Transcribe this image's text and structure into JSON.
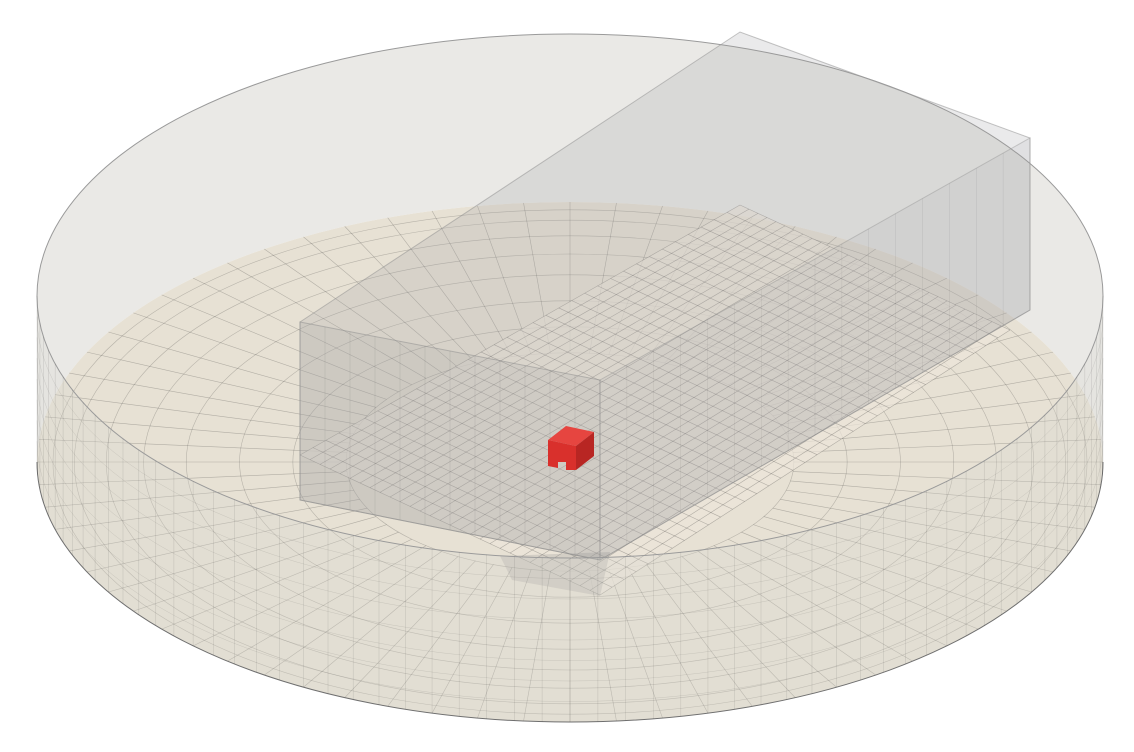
{
  "scene": {
    "background": "#ffffff",
    "floor_color": "#e7e1d4",
    "cylinder_wall_color": "#d9d7d2",
    "mesh_line_color": "#2a2a2a",
    "box_color": "#9ea0a2",
    "target_color": "#d9302c",
    "target_top_color": "#e64540",
    "target_side_color": "#b82623",
    "objects": [
      "cylindrical-domain",
      "rectangular-refinement-box",
      "red-cube-target"
    ]
  }
}
